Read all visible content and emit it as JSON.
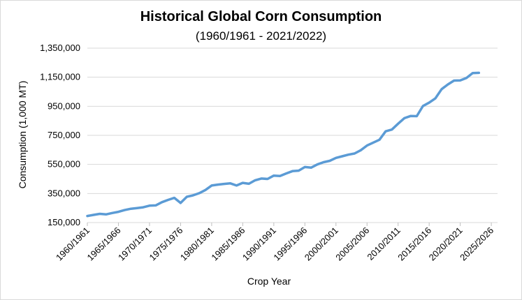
{
  "chart_data": {
    "type": "line",
    "title": "Historical Global Corn Consumption",
    "subtitle": "(1960/1961 - 2021/2022)",
    "xlabel": "Crop Year",
    "ylabel": "Consumption (1,000 MT)",
    "ylim": [
      150000,
      1350000
    ],
    "yticks": [
      "150,000",
      "350,000",
      "550,000",
      "750,000",
      "950,000",
      "1,150,000",
      "1,350,000"
    ],
    "xlim": [
      1960,
      2026
    ],
    "xtick_labels": [
      "1960/1961",
      "1965/1966",
      "1970/1971",
      "1975/1976",
      "1980/1981",
      "1985/1986",
      "1990/1991",
      "1995/1996",
      "2000/2001",
      "2005/2006",
      "2010/2011",
      "2015/2016",
      "2020/2021",
      "2025/2026"
    ],
    "grid": true,
    "line_color": "#5b9bd5",
    "series": [
      {
        "x": [
          1960,
          1961,
          1962,
          1963,
          1964,
          1965,
          1966,
          1967,
          1968,
          1969,
          1970,
          1971,
          1972,
          1973,
          1974,
          1975,
          1976,
          1977,
          1978,
          1979,
          1980,
          1981,
          1982,
          1983,
          1984,
          1985,
          1986,
          1987,
          1988,
          1989,
          1990,
          1991,
          1992,
          1993,
          1994,
          1995,
          1996,
          1997,
          1998,
          1999,
          2000,
          2001,
          2002,
          2003,
          2004,
          2005,
          2006,
          2007,
          2008,
          2009,
          2010,
          2011,
          2012,
          2013,
          2014,
          2015,
          2016,
          2017,
          2018,
          2019,
          2020,
          2021,
          2022,
          2023
        ],
        "values": [
          195000,
          203000,
          210000,
          206000,
          216000,
          224000,
          236000,
          245000,
          250000,
          255000,
          266000,
          268000,
          290000,
          306000,
          320000,
          285000,
          327000,
          337000,
          352000,
          374000,
          405000,
          411000,
          416000,
          420000,
          405000,
          423000,
          417000,
          441000,
          453000,
          450000,
          473000,
          470000,
          488000,
          504000,
          507000,
          532000,
          528000,
          550000,
          565000,
          575000,
          595000,
          606000,
          617000,
          625000,
          648000,
          680000,
          700000,
          720000,
          778000,
          790000,
          830000,
          868000,
          883000,
          882000,
          952000,
          975000,
          1005000,
          1068000,
          1100000,
          1127000,
          1128000,
          1145000,
          1178000,
          1180000
        ]
      }
    ]
  }
}
